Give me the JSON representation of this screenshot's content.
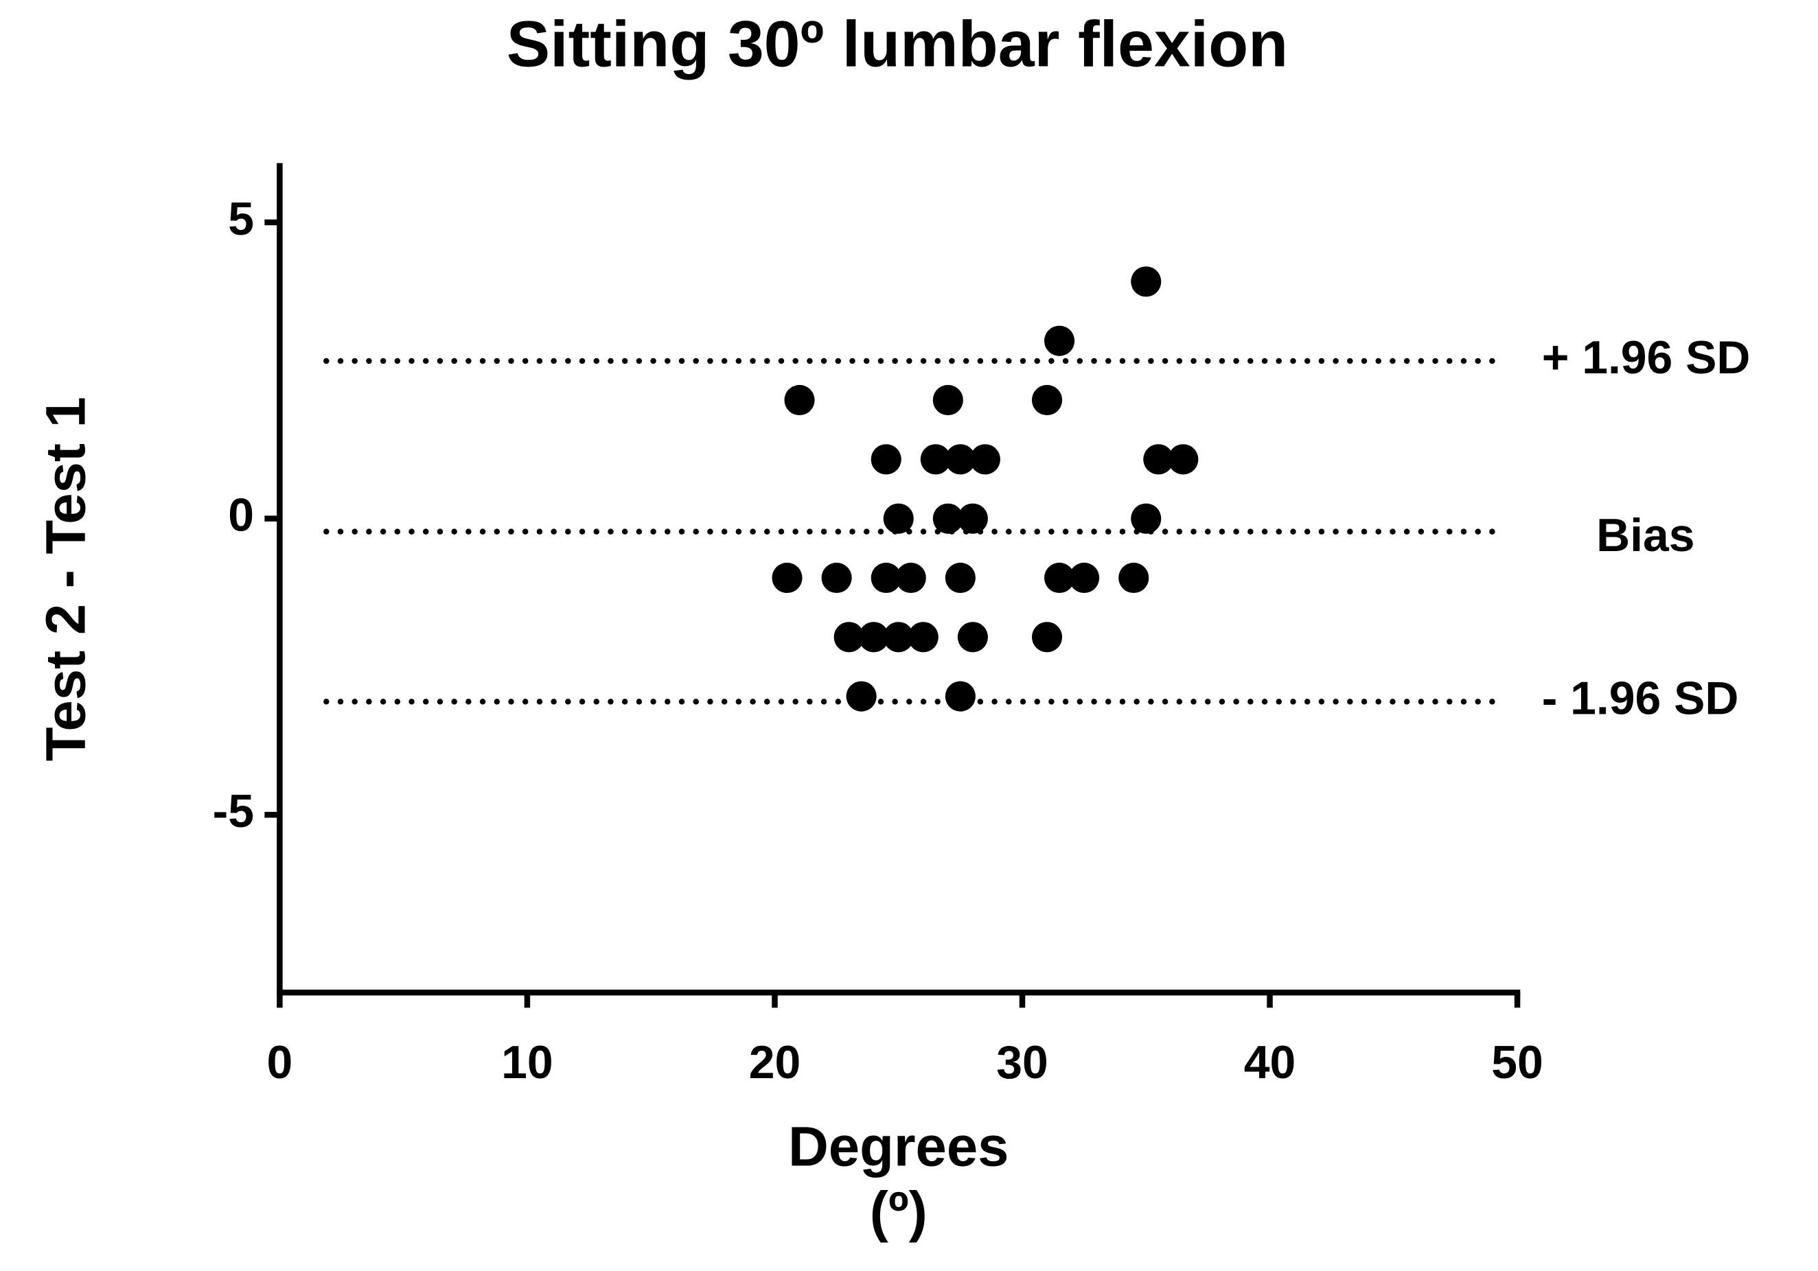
{
  "chart_data": {
    "type": "scatter",
    "title": "Sitting 30º lumbar flexion",
    "xlabel": [
      "Degrees",
      "(º)"
    ],
    "ylabel": "Test 2 - Test 1",
    "x": [
      35,
      31.5,
      21,
      27,
      31,
      24.5,
      26.5,
      27.5,
      28.5,
      35.5,
      36.5,
      25,
      27,
      28,
      35,
      20.5,
      22.5,
      24.5,
      25.5,
      27.5,
      31.5,
      32.5,
      34.5,
      23,
      24,
      25,
      26,
      28,
      31,
      23.5,
      27.5
    ],
    "values": [
      4,
      3,
      2,
      2,
      2,
      1,
      1,
      1,
      1,
      1,
      1,
      0,
      0,
      0,
      0,
      -1,
      -1,
      -1,
      -1,
      -1,
      -1,
      -1,
      -1,
      -2,
      -2,
      -2,
      -2,
      -2,
      -2,
      -3,
      -3
    ],
    "color": "#000000",
    "xlim": [
      0,
      50
    ],
    "xticks": [
      0,
      10,
      20,
      30,
      40,
      50
    ],
    "ylim": [
      -8,
      6
    ],
    "yticks": [
      -5,
      0,
      5
    ],
    "reference_lines": [
      {
        "label": "+ 1.96 SD",
        "value": 2.66
      },
      {
        "label": "Bias",
        "value": -0.22
      },
      {
        "label": "- 1.96 SD",
        "value": -3.09
      }
    ]
  }
}
